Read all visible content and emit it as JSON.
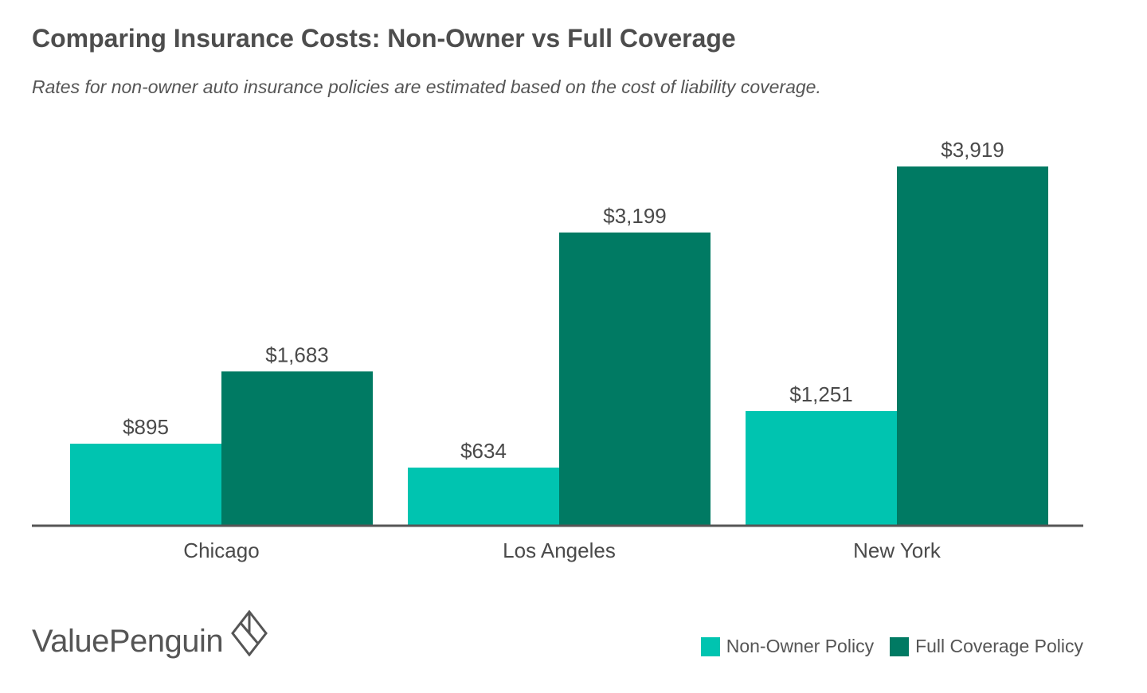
{
  "title": "Comparing Insurance Costs: Non-Owner vs Full Coverage",
  "subtitle": "Rates for non-owner auto insurance policies are estimated based on the cost of liability coverage.",
  "brand": {
    "name": "ValuePenguin",
    "logo_icon": "diamond-logo-icon"
  },
  "colors": {
    "non_owner": "#00c4b0",
    "full_coverage": "#007a63",
    "axis": "#555555",
    "text": "#4a4a4a"
  },
  "chart_data": {
    "type": "bar",
    "title": "Comparing Insurance Costs: Non-Owner vs Full Coverage",
    "subtitle": "Rates for non-owner auto insurance policies are estimated based on the cost of liability coverage.",
    "categories": [
      "Chicago",
      "Los Angeles",
      "New York"
    ],
    "series": [
      {
        "name": "Non-Owner Policy",
        "values": [
          895,
          634,
          1251
        ],
        "labels": [
          "$895",
          "$634",
          "$1,251"
        ]
      },
      {
        "name": "Full Coverage Policy",
        "values": [
          1683,
          3199,
          3919
        ],
        "labels": [
          "$1,683",
          "$3,199",
          "$3,919"
        ]
      }
    ],
    "xlabel": "",
    "ylabel": "",
    "ylim": [
      0,
      3919
    ],
    "grid": false,
    "legend_position": "bottom-right"
  },
  "legend": [
    {
      "label": "Non-Owner Policy",
      "color": "#00c4b0"
    },
    {
      "label": "Full Coverage Policy",
      "color": "#007a63"
    }
  ]
}
